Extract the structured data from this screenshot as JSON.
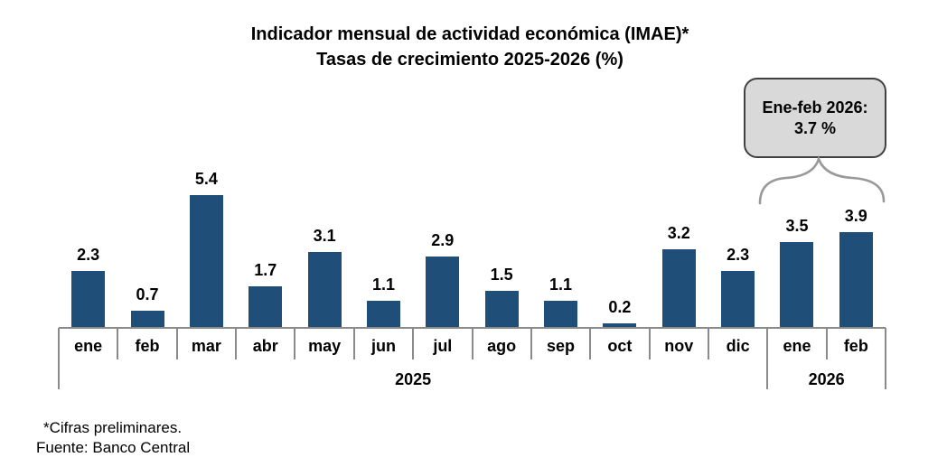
{
  "title": {
    "line1": "Indicador mensual de actividad económica (IMAE)*",
    "line2": "Tasas de crecimiento 2025-2026 (%)"
  },
  "callout": {
    "line1": "Ene-feb 2026:",
    "line2": "3.7 %"
  },
  "footer": {
    "note": "*Cifras preliminares.",
    "source": "Fuente: Banco Central"
  },
  "chart_data": {
    "type": "bar",
    "title": "Indicador mensual de actividad económica (IMAE)* — Tasas de crecimiento 2025-2026 (%)",
    "categories": [
      "ene",
      "feb",
      "mar",
      "abr",
      "may",
      "jun",
      "jul",
      "ago",
      "sep",
      "oct",
      "nov",
      "dic",
      "ene",
      "feb"
    ],
    "values": [
      2.3,
      0.7,
      5.4,
      1.7,
      3.1,
      1.1,
      2.9,
      1.5,
      1.1,
      0.2,
      3.2,
      2.3,
      3.5,
      3.9
    ],
    "year_groups": [
      {
        "label": "2025",
        "start": 0,
        "count": 12
      },
      {
        "label": "2026",
        "start": 12,
        "count": 2
      }
    ],
    "annotation": "Ene-feb 2026: 3.7 %",
    "value_labels": true,
    "grid": false,
    "legend": "none",
    "ylim": [
      0,
      5.8
    ],
    "bar_color": "#1f4e79",
    "axis_color": "#8a8a8a"
  }
}
